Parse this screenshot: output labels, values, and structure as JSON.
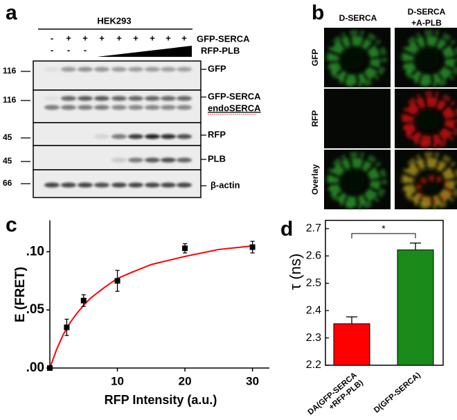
{
  "panel_labels": [
    "a",
    "b",
    "c",
    "d"
  ],
  "blot": {
    "cell_line": "HEK293",
    "rows": [
      {
        "label": "GFP-SERCA",
        "marks": [
          "-",
          "+",
          "+",
          "+",
          "+",
          "+",
          "+",
          "+",
          "+"
        ]
      },
      {
        "label": "RFP-PLB",
        "marks": [
          "-",
          "-",
          "-"
        ]
      }
    ],
    "mw": [
      "116",
      "116",
      "45",
      "45",
      "66"
    ],
    "bands": [
      "GFP",
      "GFP-SERCA",
      "endoSERCA",
      "RFP",
      "PLB",
      "β-actin"
    ]
  },
  "images": {
    "columns": [
      [
        "D-SERCA"
      ],
      [
        "D-SERCA",
        "+A-PLB"
      ]
    ],
    "rows": [
      "GFP",
      "RFP",
      "Overlay"
    ]
  },
  "chart_data": [
    {
      "type": "scatter",
      "xlabel": "RFP Intensity (a.u.)",
      "ylabel": "E (FRET)",
      "x": [
        0,
        2.5,
        5,
        10,
        20,
        30
      ],
      "values": [
        0,
        0.035,
        0.058,
        0.075,
        0.103,
        0.104
      ],
      "errors": [
        null,
        0.007,
        0.005,
        0.009,
        0.004,
        0.005
      ],
      "color": "#000000",
      "fit": {
        "color": "#ff0000",
        "x": [
          0,
          1,
          2,
          3,
          4,
          5,
          6,
          8,
          10,
          12,
          15,
          20,
          25,
          30
        ],
        "values": [
          0,
          0.016,
          0.029,
          0.039,
          0.047,
          0.054,
          0.06,
          0.069,
          0.077,
          0.082,
          0.089,
          0.096,
          0.102,
          0.105
        ]
      },
      "xlim": [
        0,
        32.5
      ],
      "ylim": [
        0,
        0.127
      ],
      "xticks": [
        10,
        20,
        30
      ],
      "yticks": [
        {
          "value": 0,
          "label": ".00"
        },
        {
          "value": 0.05,
          "label": ".05"
        },
        {
          "value": 0.1,
          "label": ".10"
        }
      ]
    },
    {
      "type": "bar",
      "ylabel": "τ (ns)",
      "categories": [
        [
          "DA(GFP-SERCA",
          "+RFP-PLB)"
        ],
        [
          "D(GFP-SERCA)"
        ]
      ],
      "values": [
        2.352,
        2.622
      ],
      "errors": [
        0.025,
        0.025
      ],
      "colors": [
        "#ff0000",
        "#1a8a1a"
      ],
      "ylim": [
        2.2,
        2.73
      ],
      "yticks": [
        2.2,
        2.3,
        2.4,
        2.5,
        2.6,
        2.7
      ],
      "annotation": "*"
    }
  ]
}
